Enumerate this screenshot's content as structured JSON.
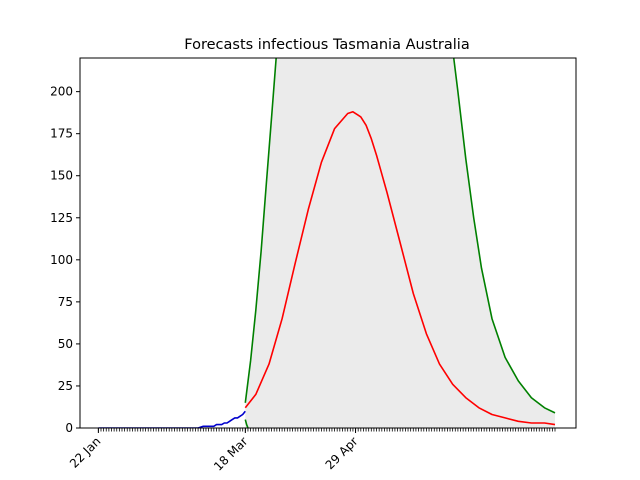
{
  "chart_data": {
    "type": "line",
    "title": "Forecasts infectious Tasmania Australia",
    "xlabel": "",
    "ylabel": "",
    "x_tick_labels": [
      "22 Jan",
      "18 Mar",
      "29 Apr"
    ],
    "x_ticks": [
      0,
      56,
      98
    ],
    "xlim": [
      -7,
      182
    ],
    "ylim": [
      0,
      220
    ],
    "y_ticks": [
      0,
      25,
      50,
      75,
      100,
      125,
      150,
      175,
      200
    ],
    "grid": false,
    "legend": "none",
    "series": [
      {
        "color": "#0000cc",
        "x": [
          0,
          5,
          10,
          15,
          20,
          25,
          30,
          35,
          38,
          40,
          41,
          42,
          43,
          44,
          45,
          46,
          47,
          48,
          49,
          50,
          51,
          52,
          53,
          54,
          55,
          56
        ],
        "y": [
          0,
          0,
          0,
          0,
          0,
          0,
          0,
          0,
          0,
          1,
          1,
          1,
          1,
          1,
          2,
          2,
          2,
          3,
          3,
          4,
          5,
          6,
          6,
          7,
          8,
          10
        ]
      },
      {
        "color": "#ff0000",
        "x": [
          56,
          60,
          65,
          70,
          75,
          80,
          85,
          90,
          95,
          97,
          99,
          100,
          102,
          104,
          106,
          110,
          115,
          120,
          125,
          130,
          135,
          140,
          145,
          150,
          155,
          160,
          165,
          170,
          174
        ],
        "y": [
          12,
          20,
          38,
          65,
          98,
          130,
          158,
          178,
          187,
          188,
          186,
          185,
          180,
          172,
          162,
          140,
          110,
          80,
          56,
          38,
          26,
          18,
          12,
          8,
          6,
          4,
          3,
          3,
          2
        ]
      },
      {
        "color": "#008000",
        "x": [
          56,
          58,
          60,
          62,
          64,
          66,
          68
        ],
        "y": [
          15,
          40,
          70,
          105,
          145,
          185,
          225
        ]
      },
      {
        "color": "#008000",
        "x": [
          56,
          56.5,
          57
        ],
        "y": [
          5,
          2,
          0
        ]
      },
      {
        "color": "#008000",
        "x": [
          135,
          137,
          140,
          143,
          146,
          150,
          155,
          160,
          165,
          170,
          174
        ],
        "y": [
          225,
          200,
          160,
          125,
          95,
          65,
          42,
          28,
          18,
          12,
          9
        ]
      }
    ],
    "band": {
      "color": "#ebebeb",
      "x_start": 56,
      "x_end": 174,
      "upper": {
        "x": [
          56,
          58,
          60,
          62,
          64,
          66,
          68,
          135,
          137,
          140,
          143,
          146,
          150,
          155,
          160,
          165,
          170,
          174
        ],
        "y": [
          15,
          40,
          70,
          105,
          145,
          185,
          225,
          225,
          200,
          160,
          125,
          95,
          65,
          42,
          28,
          18,
          12,
          9
        ]
      },
      "lower": {
        "x": [
          56,
          174
        ],
        "y": [
          0,
          0
        ]
      }
    }
  }
}
